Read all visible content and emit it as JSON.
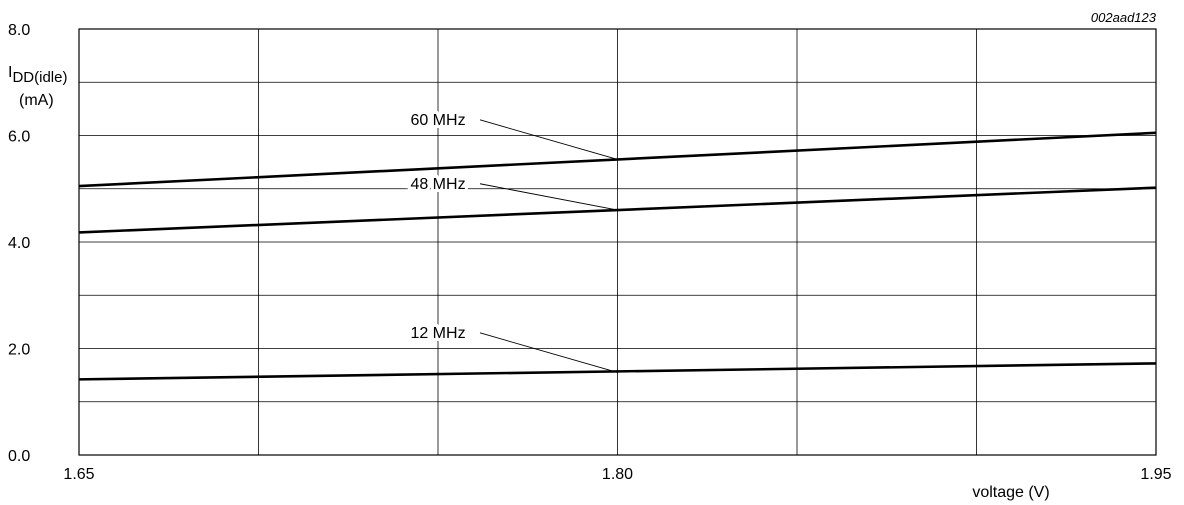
{
  "chart_data": {
    "type": "line",
    "id_code": "002aad123",
    "xlabel": "voltage (V)",
    "ylabel": {
      "symbol": "I",
      "subscript": "DD(idle)",
      "unit": "(mA)"
    },
    "xlim": [
      1.65,
      1.95
    ],
    "ylim": [
      0.0,
      8.0
    ],
    "x_ticks": [
      1.65,
      1.8,
      1.95
    ],
    "x_tick_labels": [
      "1.65",
      "1.80",
      "1.95"
    ],
    "y_ticks": [
      0.0,
      2.0,
      4.0,
      6.0,
      8.0
    ],
    "y_tick_labels": [
      "0.0",
      "2.0",
      "4.0",
      "6.0",
      "8.0"
    ],
    "x_gridlines": [
      1.65,
      1.7,
      1.75,
      1.8,
      1.85,
      1.9,
      1.95
    ],
    "y_gridlines": [
      0,
      1,
      2,
      3,
      4,
      5,
      6,
      7,
      8
    ],
    "grid": true,
    "series": [
      {
        "name": "60 MHz",
        "x": [
          1.65,
          1.95
        ],
        "y": [
          5.05,
          6.05
        ]
      },
      {
        "name": "48 MHz",
        "x": [
          1.65,
          1.95
        ],
        "y": [
          4.18,
          5.02
        ]
      },
      {
        "name": "12 MHz",
        "x": [
          1.65,
          1.95
        ],
        "y": [
          1.42,
          1.72
        ]
      }
    ],
    "annotations": [
      {
        "series": "60 MHz",
        "text": "60 MHz",
        "label_x": 1.75,
        "label_y": 6.2,
        "point_x": 1.8,
        "point_y": 5.55
      },
      {
        "series": "48 MHz",
        "text": "48 MHz",
        "label_x": 1.75,
        "label_y": 5.0,
        "point_x": 1.8,
        "point_y": 4.6
      },
      {
        "series": "12 MHz",
        "text": "12 MHz",
        "label_x": 1.75,
        "label_y": 2.2,
        "point_x": 1.8,
        "point_y": 1.55
      }
    ]
  }
}
